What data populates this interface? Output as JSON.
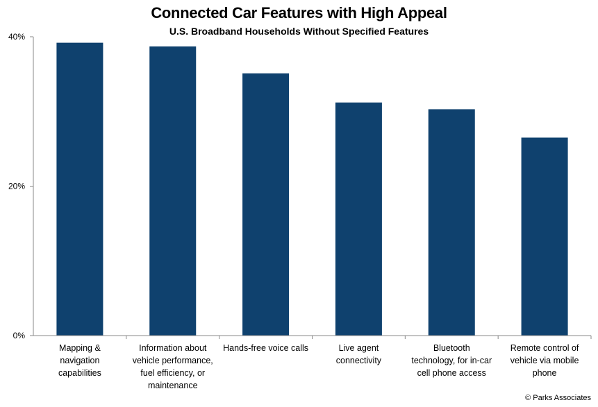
{
  "chart_data": {
    "type": "bar",
    "title": "Connected Car Features with High Appeal",
    "subtitle": "U.S. Broadband Households Without Specified Features",
    "categories": [
      "Mapping & navigation capabilities",
      "Information about vehicle performance, fuel efficiency, or maintenance",
      "Hands-free voice calls",
      "Live agent connectivity",
      "Bluetooth technology, for in-car cell phone access",
      "Remote control of vehicle via mobile phone"
    ],
    "category_lines": [
      [
        "Mapping &",
        "navigation",
        "capabilities"
      ],
      [
        "Information about",
        "vehicle performance,",
        "fuel efficiency, or",
        "maintenance"
      ],
      [
        "Hands-free voice calls"
      ],
      [
        "Live agent",
        "connectivity"
      ],
      [
        "Bluetooth",
        "technology, for in-car",
        "cell phone access"
      ],
      [
        "Remote control of",
        "vehicle via mobile",
        "phone"
      ]
    ],
    "values": [
      39.2,
      38.7,
      35.1,
      31.2,
      30.3,
      26.5
    ],
    "unit": "%",
    "ylim": [
      0,
      40
    ],
    "yticks": [
      0,
      20,
      40
    ],
    "ytick_labels": [
      "0%",
      "20%",
      "40%"
    ],
    "xlabel": "",
    "ylabel": "",
    "grid": false,
    "legend": "none",
    "bar_color": "#0f416e"
  },
  "credit": "© Parks Associates"
}
